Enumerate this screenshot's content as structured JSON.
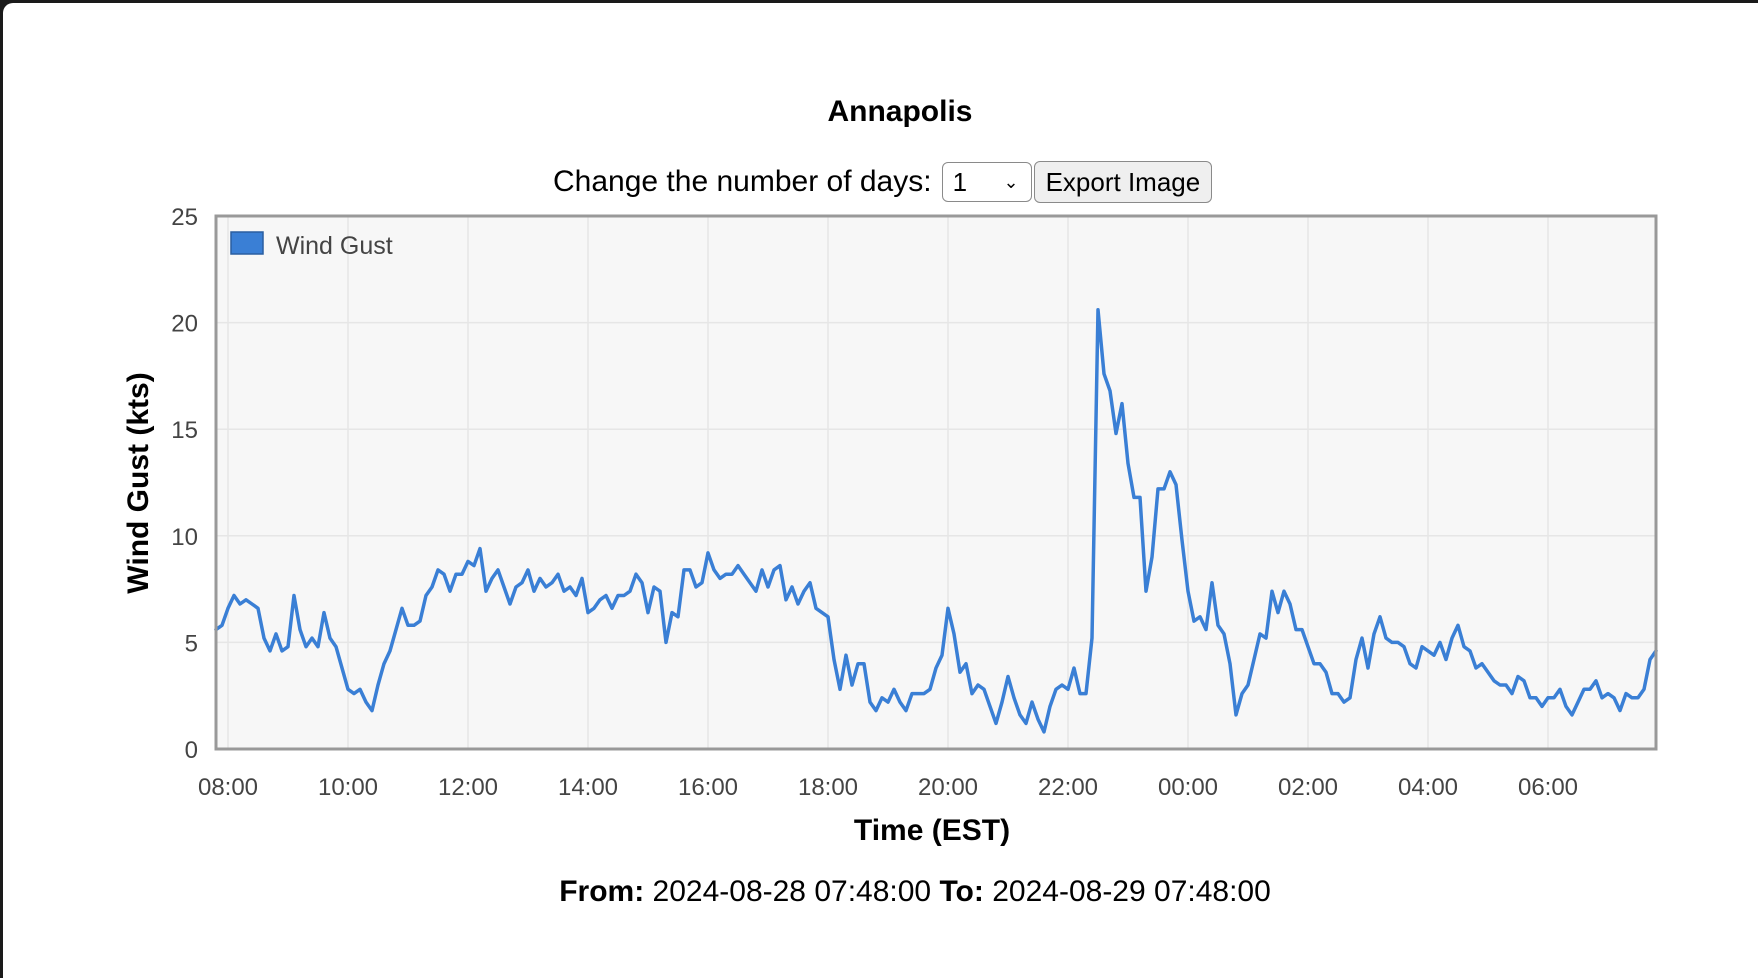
{
  "page": {
    "title": "Annapolis",
    "days_label": "Change the number of days:",
    "days_value": "1",
    "export_label": "Export Image",
    "from_label": "From:",
    "from_value": "2024-08-28 07:48:00",
    "to_label": "To:",
    "to_value": "2024-08-29 07:48:00"
  },
  "chart_data": {
    "type": "line",
    "xlabel": "Time (EST)",
    "ylabel": "Wind Gust (kts)",
    "xlim": [
      "2024-08-28 07:48",
      "2024-08-29 07:48"
    ],
    "ylim": [
      0,
      25
    ],
    "yticks": [
      0,
      5,
      10,
      15,
      20,
      25
    ],
    "xticks": [
      "08:00",
      "10:00",
      "12:00",
      "14:00",
      "16:00",
      "18:00",
      "20:00",
      "22:00",
      "00:00",
      "02:00",
      "04:00",
      "06:00"
    ],
    "grid": true,
    "legend_position": "top-left",
    "colors": {
      "series": "#3a7fd5",
      "plot_bg": "#f7f7f7",
      "grid": "#e6e6e6",
      "border": "#999999"
    },
    "series": [
      {
        "name": "Wind Gust",
        "x": [
          "2024-08-28 07:48",
          "2024-08-28 07:54",
          "2024-08-28 08:00",
          "2024-08-28 08:06",
          "2024-08-28 08:12",
          "2024-08-28 08:18",
          "2024-08-28 08:24",
          "2024-08-28 08:30",
          "2024-08-28 08:36",
          "2024-08-28 08:42",
          "2024-08-28 08:48",
          "2024-08-28 08:54",
          "2024-08-28 09:00",
          "2024-08-28 09:06",
          "2024-08-28 09:12",
          "2024-08-28 09:18",
          "2024-08-28 09:24",
          "2024-08-28 09:30",
          "2024-08-28 09:36",
          "2024-08-28 09:42",
          "2024-08-28 09:48",
          "2024-08-28 09:54",
          "2024-08-28 10:00",
          "2024-08-28 10:06",
          "2024-08-28 10:12",
          "2024-08-28 10:18",
          "2024-08-28 10:24",
          "2024-08-28 10:30",
          "2024-08-28 10:36",
          "2024-08-28 10:42",
          "2024-08-28 10:48",
          "2024-08-28 10:54",
          "2024-08-28 11:00",
          "2024-08-28 11:06",
          "2024-08-28 11:12",
          "2024-08-28 11:18",
          "2024-08-28 11:24",
          "2024-08-28 11:30",
          "2024-08-28 11:36",
          "2024-08-28 11:42",
          "2024-08-28 11:48",
          "2024-08-28 11:54",
          "2024-08-28 12:00",
          "2024-08-28 12:06",
          "2024-08-28 12:12",
          "2024-08-28 12:18",
          "2024-08-28 12:24",
          "2024-08-28 12:30",
          "2024-08-28 12:36",
          "2024-08-28 12:42",
          "2024-08-28 12:48",
          "2024-08-28 12:54",
          "2024-08-28 13:00",
          "2024-08-28 13:06",
          "2024-08-28 13:12",
          "2024-08-28 13:18",
          "2024-08-28 13:24",
          "2024-08-28 13:30",
          "2024-08-28 13:36",
          "2024-08-28 13:42",
          "2024-08-28 13:48",
          "2024-08-28 13:54",
          "2024-08-28 14:00",
          "2024-08-28 14:06",
          "2024-08-28 14:12",
          "2024-08-28 14:18",
          "2024-08-28 14:24",
          "2024-08-28 14:30",
          "2024-08-28 14:36",
          "2024-08-28 14:42",
          "2024-08-28 14:48",
          "2024-08-28 14:54",
          "2024-08-28 15:00",
          "2024-08-28 15:06",
          "2024-08-28 15:12",
          "2024-08-28 15:18",
          "2024-08-28 15:24",
          "2024-08-28 15:30",
          "2024-08-28 15:36",
          "2024-08-28 15:42",
          "2024-08-28 15:48",
          "2024-08-28 15:54",
          "2024-08-28 16:00",
          "2024-08-28 16:06",
          "2024-08-28 16:12",
          "2024-08-28 16:18",
          "2024-08-28 16:24",
          "2024-08-28 16:30",
          "2024-08-28 16:36",
          "2024-08-28 16:42",
          "2024-08-28 16:48",
          "2024-08-28 16:54",
          "2024-08-28 17:00",
          "2024-08-28 17:06",
          "2024-08-28 17:12",
          "2024-08-28 17:18",
          "2024-08-28 17:24",
          "2024-08-28 17:30",
          "2024-08-28 17:36",
          "2024-08-28 17:42",
          "2024-08-28 17:48",
          "2024-08-28 17:54",
          "2024-08-28 18:00",
          "2024-08-28 18:06",
          "2024-08-28 18:12",
          "2024-08-28 18:18",
          "2024-08-28 18:24",
          "2024-08-28 18:30",
          "2024-08-28 18:36",
          "2024-08-28 18:42",
          "2024-08-28 18:48",
          "2024-08-28 18:54",
          "2024-08-28 19:00",
          "2024-08-28 19:06",
          "2024-08-28 19:12",
          "2024-08-28 19:18",
          "2024-08-28 19:24",
          "2024-08-28 19:30",
          "2024-08-28 19:36",
          "2024-08-28 19:42",
          "2024-08-28 19:48",
          "2024-08-28 19:54",
          "2024-08-28 20:00",
          "2024-08-28 20:06",
          "2024-08-28 20:12",
          "2024-08-28 20:18",
          "2024-08-28 20:24",
          "2024-08-28 20:30",
          "2024-08-28 20:36",
          "2024-08-28 20:42",
          "2024-08-28 20:48",
          "2024-08-28 20:54",
          "2024-08-28 21:00",
          "2024-08-28 21:06",
          "2024-08-28 21:12",
          "2024-08-28 21:18",
          "2024-08-28 21:24",
          "2024-08-28 21:30",
          "2024-08-28 21:36",
          "2024-08-28 21:42",
          "2024-08-28 21:48",
          "2024-08-28 21:54",
          "2024-08-28 22:00",
          "2024-08-28 22:06",
          "2024-08-28 22:12",
          "2024-08-28 22:18",
          "2024-08-28 22:24",
          "2024-08-28 22:30",
          "2024-08-28 22:36",
          "2024-08-28 22:42",
          "2024-08-28 22:48",
          "2024-08-28 22:54",
          "2024-08-28 23:00",
          "2024-08-28 23:06",
          "2024-08-28 23:12",
          "2024-08-28 23:18",
          "2024-08-28 23:24",
          "2024-08-28 23:30",
          "2024-08-28 23:36",
          "2024-08-28 23:42",
          "2024-08-28 23:48",
          "2024-08-28 23:54",
          "2024-08-29 00:00",
          "2024-08-29 00:06",
          "2024-08-29 00:12",
          "2024-08-29 00:18",
          "2024-08-29 00:24",
          "2024-08-29 00:30",
          "2024-08-29 00:36",
          "2024-08-29 00:42",
          "2024-08-29 00:48",
          "2024-08-29 00:54",
          "2024-08-29 01:00",
          "2024-08-29 01:06",
          "2024-08-29 01:12",
          "2024-08-29 01:18",
          "2024-08-29 01:24",
          "2024-08-29 01:30",
          "2024-08-29 01:36",
          "2024-08-29 01:42",
          "2024-08-29 01:48",
          "2024-08-29 01:54",
          "2024-08-29 02:00",
          "2024-08-29 02:06",
          "2024-08-29 02:12",
          "2024-08-29 02:18",
          "2024-08-29 02:24",
          "2024-08-29 02:30",
          "2024-08-29 02:36",
          "2024-08-29 02:42",
          "2024-08-29 02:48",
          "2024-08-29 02:54",
          "2024-08-29 03:00",
          "2024-08-29 03:06",
          "2024-08-29 03:12",
          "2024-08-29 03:18",
          "2024-08-29 03:24",
          "2024-08-29 03:30",
          "2024-08-29 03:36",
          "2024-08-29 03:42",
          "2024-08-29 03:48",
          "2024-08-29 03:54",
          "2024-08-29 04:00",
          "2024-08-29 04:06",
          "2024-08-29 04:12",
          "2024-08-29 04:18",
          "2024-08-29 04:24",
          "2024-08-29 04:30",
          "2024-08-29 04:36",
          "2024-08-29 04:42",
          "2024-08-29 04:48",
          "2024-08-29 04:54",
          "2024-08-29 05:00",
          "2024-08-29 05:06",
          "2024-08-29 05:12",
          "2024-08-29 05:18",
          "2024-08-29 05:24",
          "2024-08-29 05:30",
          "2024-08-29 05:36",
          "2024-08-29 05:42",
          "2024-08-29 05:48",
          "2024-08-29 05:54",
          "2024-08-29 06:00",
          "2024-08-29 06:06",
          "2024-08-29 06:12",
          "2024-08-29 06:18",
          "2024-08-29 06:24",
          "2024-08-29 06:30",
          "2024-08-29 06:36",
          "2024-08-29 06:42",
          "2024-08-29 06:48",
          "2024-08-29 06:54",
          "2024-08-29 07:00",
          "2024-08-29 07:06",
          "2024-08-29 07:12",
          "2024-08-29 07:18",
          "2024-08-29 07:24",
          "2024-08-29 07:30",
          "2024-08-29 07:36",
          "2024-08-29 07:42",
          "2024-08-29 07:48"
        ],
        "y": [
          5.6,
          5.8,
          6.6,
          7.2,
          6.8,
          7.0,
          6.8,
          6.6,
          5.2,
          4.6,
          5.4,
          4.6,
          4.8,
          7.2,
          5.6,
          4.8,
          5.2,
          4.8,
          6.4,
          5.2,
          4.8,
          3.8,
          2.8,
          2.6,
          2.8,
          2.2,
          1.8,
          3.0,
          4.0,
          4.6,
          5.6,
          6.6,
          5.8,
          5.8,
          6.0,
          7.2,
          7.6,
          8.4,
          8.2,
          7.4,
          8.2,
          8.2,
          8.8,
          8.6,
          9.4,
          7.4,
          8.0,
          8.4,
          7.6,
          6.8,
          7.6,
          7.8,
          8.4,
          7.4,
          8.0,
          7.6,
          7.8,
          8.2,
          7.4,
          7.6,
          7.2,
          8.0,
          6.4,
          6.6,
          7.0,
          7.2,
          6.6,
          7.2,
          7.2,
          7.4,
          8.2,
          7.8,
          6.4,
          7.6,
          7.4,
          5.0,
          6.4,
          6.2,
          8.4,
          8.4,
          7.6,
          7.8,
          9.2,
          8.4,
          8.0,
          8.2,
          8.2,
          8.6,
          8.2,
          7.8,
          7.4,
          8.4,
          7.6,
          8.4,
          8.6,
          7.0,
          7.6,
          6.8,
          7.4,
          7.8,
          6.6,
          6.4,
          6.2,
          4.2,
          2.8,
          4.4,
          3.0,
          4.0,
          4.0,
          2.2,
          1.8,
          2.4,
          2.2,
          2.8,
          2.2,
          1.8,
          2.6,
          2.6,
          2.6,
          2.8,
          3.8,
          4.4,
          6.6,
          5.4,
          3.6,
          4.0,
          2.6,
          3.0,
          2.8,
          2.0,
          1.2,
          2.2,
          3.4,
          2.4,
          1.6,
          1.2,
          2.2,
          1.4,
          0.8,
          2.0,
          2.8,
          3.0,
          2.8,
          3.8,
          2.6,
          2.6,
          5.2,
          20.6,
          17.6,
          16.8,
          14.8,
          16.2,
          13.4,
          11.8,
          11.8,
          7.4,
          9.0,
          12.2,
          12.2,
          13.0,
          12.4,
          9.8,
          7.4,
          6.0,
          6.2,
          5.6,
          7.8,
          5.8,
          5.4,
          4.0,
          1.6,
          2.6,
          3.0,
          4.2,
          5.4,
          5.2,
          7.4,
          6.4,
          7.4,
          6.8,
          5.6,
          5.6,
          4.8,
          4.0,
          4.0,
          3.6,
          2.6,
          2.6,
          2.2,
          2.4,
          4.2,
          5.2,
          3.8,
          5.4,
          6.2,
          5.2,
          5.0,
          5.0,
          4.8,
          4.0,
          3.8,
          4.8,
          4.6,
          4.4,
          5.0,
          4.2,
          5.2,
          5.8,
          4.8,
          4.6,
          3.8,
          4.0,
          3.6,
          3.2,
          3.0,
          3.0,
          2.6,
          3.4,
          3.2,
          2.4,
          2.4,
          2.0,
          2.4,
          2.4,
          2.8,
          2.0,
          1.6,
          2.2,
          2.8,
          2.8,
          3.2,
          2.4,
          2.6,
          2.4,
          1.8,
          2.6,
          2.4,
          2.4,
          2.8,
          4.2,
          4.6
        ]
      }
    ]
  }
}
